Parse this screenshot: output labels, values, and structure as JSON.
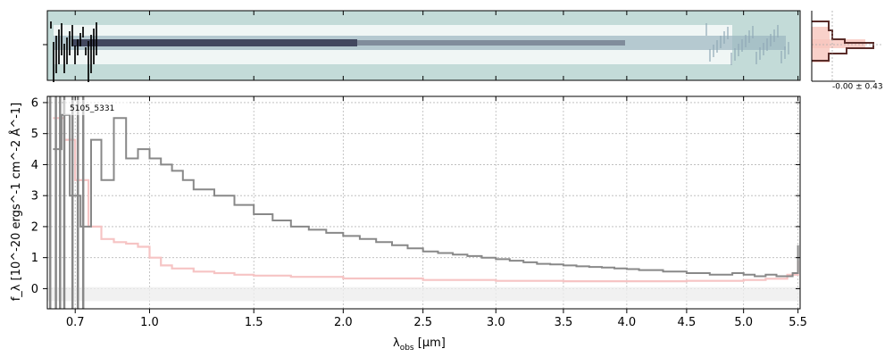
{
  "chart_data": [
    {
      "type": "heatmap",
      "name": "2d-spectrum",
      "background_color": "#c3dbd8",
      "trace_color": "#1c1b3a",
      "x_ticks": [
        0.7,
        1.0,
        1.5,
        2.0,
        2.5,
        3.0,
        3.5,
        4.0,
        4.5,
        5.0,
        5.5
      ]
    },
    {
      "type": "line",
      "name": "1d-spectrum",
      "xlabel_main": "λ",
      "xlabel_sub": "obs",
      "xlabel_unit": " [μm]",
      "ylabel": "f_λ [10^-20 ergs^-1 cm^-2 Å^-1]",
      "annotation": "5105_5331",
      "x_scale": "power (display)",
      "xlim": [
        0.6,
        5.52
      ],
      "ylim": [
        -0.65,
        6.2
      ],
      "x_ticks": [
        0.7,
        1.0,
        1.5,
        2.0,
        2.5,
        3.0,
        3.5,
        4.0,
        4.5,
        5.0,
        5.5
      ],
      "x_tick_labels": [
        "0.7",
        "1.0",
        "1.5",
        "2.0",
        "2.5",
        "3.0",
        "3.5",
        "4.0",
        "4.5",
        "5.0",
        "5.5"
      ],
      "y_ticks": [
        0,
        1,
        2,
        3,
        4,
        5,
        6
      ],
      "grid": true,
      "series": [
        {
          "role": "flux",
          "color": "#888888",
          "x": [
            0.62,
            0.65,
            0.68,
            0.72,
            0.76,
            0.8,
            0.85,
            0.9,
            0.95,
            1.0,
            1.05,
            1.1,
            1.15,
            1.2,
            1.3,
            1.4,
            1.5,
            1.6,
            1.7,
            1.8,
            1.9,
            2.0,
            2.1,
            2.2,
            2.3,
            2.4,
            2.5,
            2.6,
            2.7,
            2.8,
            2.9,
            3.0,
            3.1,
            3.2,
            3.3,
            3.4,
            3.5,
            3.6,
            3.7,
            3.8,
            3.9,
            4.0,
            4.1,
            4.2,
            4.3,
            4.4,
            4.5,
            4.6,
            4.7,
            4.8,
            4.9,
            5.0,
            5.1,
            5.2,
            5.3,
            5.4,
            5.45,
            5.5
          ],
          "y": [
            4.5,
            5.6,
            3.0,
            2.0,
            4.8,
            3.5,
            5.5,
            4.2,
            4.5,
            4.2,
            4.0,
            3.8,
            3.5,
            3.2,
            3.0,
            2.7,
            2.4,
            2.2,
            2.0,
            1.9,
            1.8,
            1.7,
            1.6,
            1.5,
            1.4,
            1.3,
            1.2,
            1.15,
            1.1,
            1.05,
            1.0,
            0.95,
            0.9,
            0.85,
            0.8,
            0.78,
            0.75,
            0.72,
            0.7,
            0.68,
            0.65,
            0.63,
            0.6,
            0.6,
            0.55,
            0.55,
            0.5,
            0.5,
            0.45,
            0.45,
            0.5,
            0.45,
            0.4,
            0.45,
            0.4,
            0.4,
            0.5,
            1.4
          ]
        },
        {
          "role": "model",
          "color": "#f6c4c4",
          "x": [
            0.62,
            0.66,
            0.7,
            0.75,
            0.8,
            0.85,
            0.9,
            0.95,
            1.0,
            1.05,
            1.1,
            1.2,
            1.3,
            1.4,
            1.5,
            1.7,
            2.0,
            2.5,
            3.0,
            3.5,
            4.0,
            4.5,
            5.0,
            5.2,
            5.4,
            5.5
          ],
          "y": [
            5.5,
            4.8,
            3.5,
            2.0,
            1.6,
            1.5,
            1.45,
            1.35,
            1.0,
            0.75,
            0.65,
            0.55,
            0.5,
            0.45,
            0.42,
            0.38,
            0.33,
            0.28,
            0.25,
            0.24,
            0.24,
            0.25,
            0.28,
            0.32,
            0.45,
            0.9
          ]
        }
      ]
    },
    {
      "type": "bar",
      "name": "cross-dispersion-profile",
      "label": "-0.00 ± 0.43",
      "bar_color": "#5a2d2a",
      "fill_color": "#f7c6bd"
    }
  ]
}
